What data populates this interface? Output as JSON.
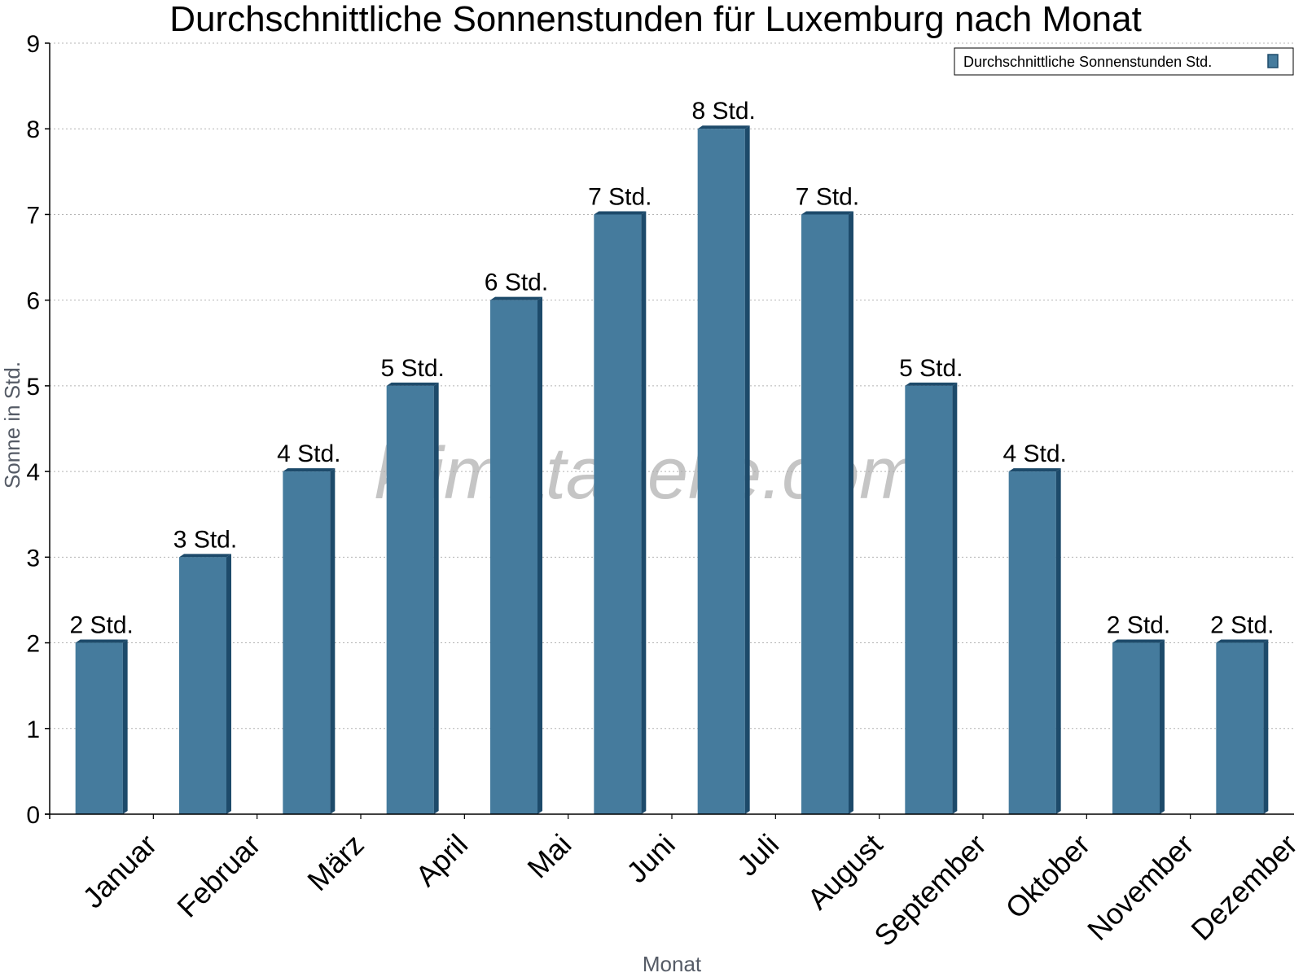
{
  "chart_data": {
    "type": "bar",
    "title": "Durchschnittliche Sonnenstunden für Luxemburg nach Monat",
    "xlabel": "Monat",
    "ylabel": "Sonne in Std.",
    "categories": [
      "Januar",
      "Februar",
      "März",
      "April",
      "Mai",
      "Juni",
      "Juli",
      "August",
      "September",
      "Oktober",
      "November",
      "Dezember"
    ],
    "series": [
      {
        "name": "Durchschnittliche Sonnenstunden Std.",
        "values": [
          2,
          3,
          4,
          5,
          6,
          7,
          8,
          7,
          5,
          4,
          2,
          2
        ],
        "labels": [
          "2 Std.",
          "3 Std.",
          "4 Std.",
          "5 Std.",
          "6 Std.",
          "7 Std.",
          "8 Std.",
          "7 Std.",
          "5 Std.",
          "4 Std.",
          "2 Std.",
          "2 Std."
        ]
      }
    ],
    "ylim": [
      0,
      9
    ],
    "yticks": [
      "0",
      "1",
      "2",
      "3",
      "4",
      "5",
      "6",
      "7",
      "8",
      "9"
    ],
    "grid": true,
    "legend_position": "top-right",
    "bar_color": "#457b9d",
    "bar_shade_color": "#1d4a6a",
    "watermark": "klimatabelle.com"
  }
}
